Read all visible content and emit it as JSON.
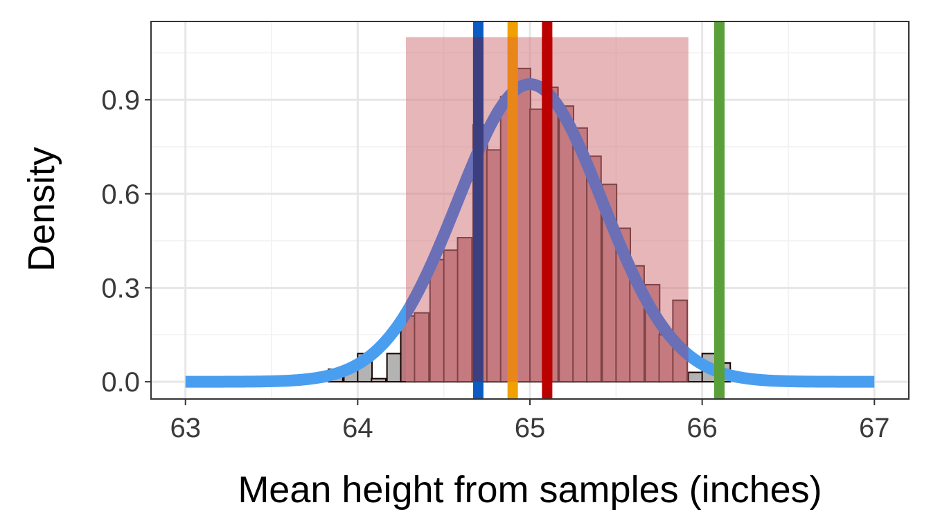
{
  "chart_data": {
    "type": "bar",
    "title": "",
    "xlabel": "Mean height from samples (inches)",
    "ylabel": "Density",
    "xlim": [
      62.8,
      67.2
    ],
    "ylim": [
      -0.055,
      1.15
    ],
    "x_ticks": [
      63,
      64,
      65,
      66,
      67
    ],
    "x_tick_labels": [
      "63",
      "64",
      "65",
      "66",
      "67"
    ],
    "y_ticks": [
      0.0,
      0.3,
      0.6,
      0.9
    ],
    "y_tick_labels": [
      "0.0",
      "0.3",
      "0.6",
      "0.9"
    ],
    "grid": true,
    "histogram": {
      "bin_width": 0.0833,
      "bins": [
        {
          "x0": 63.83,
          "value": 0.04
        },
        {
          "x0": 63.92,
          "value": 0.05
        },
        {
          "x0": 64.0,
          "value": 0.09
        },
        {
          "x0": 64.08,
          "value": 0.01
        },
        {
          "x0": 64.17,
          "value": 0.09
        },
        {
          "x0": 64.25,
          "value": 0.21
        },
        {
          "x0": 64.33,
          "value": 0.22
        },
        {
          "x0": 64.42,
          "value": 0.39
        },
        {
          "x0": 64.5,
          "value": 0.42
        },
        {
          "x0": 64.58,
          "value": 0.46
        },
        {
          "x0": 64.67,
          "value": 0.82
        },
        {
          "x0": 64.75,
          "value": 0.74
        },
        {
          "x0": 64.83,
          "value": 0.91
        },
        {
          "x0": 64.92,
          "value": 1.0
        },
        {
          "x0": 65.0,
          "value": 0.87
        },
        {
          "x0": 65.08,
          "value": 0.94
        },
        {
          "x0": 65.17,
          "value": 0.88
        },
        {
          "x0": 65.25,
          "value": 0.81
        },
        {
          "x0": 65.33,
          "value": 0.72
        },
        {
          "x0": 65.42,
          "value": 0.63
        },
        {
          "x0": 65.5,
          "value": 0.49
        },
        {
          "x0": 65.58,
          "value": 0.37
        },
        {
          "x0": 65.67,
          "value": 0.31
        },
        {
          "x0": 65.75,
          "value": 0.15
        },
        {
          "x0": 65.83,
          "value": 0.26
        },
        {
          "x0": 65.92,
          "value": 0.03
        },
        {
          "x0": 66.0,
          "value": 0.09
        },
        {
          "x0": 66.08,
          "value": 0.06
        }
      ],
      "highlight_range": [
        64.28,
        65.92
      ],
      "highlight_fill": "#b47a7f",
      "outside_fill": "#b3b3b3",
      "bar_stroke": "#1a0000"
    },
    "shaded_interval": {
      "x": [
        64.28,
        65.92
      ],
      "y_top": 1.1,
      "color": "#d47a80",
      "opacity": 0.55
    },
    "density_curve": {
      "mean": 65.0,
      "sd": 0.42,
      "x_range": [
        63.0,
        67.0
      ],
      "color_inside": "#6b6fb5",
      "color_outside": "#4a9ef0"
    },
    "vertical_lines": [
      {
        "x": 64.7,
        "color": "#0a5cc2",
        "overlap_color": "#3b3f7f"
      },
      {
        "x": 64.9,
        "color": "#f0a000",
        "overlap_color": "#e8861a"
      },
      {
        "x": 65.1,
        "color": "#bb0000",
        "overlap_color": "#bb0000"
      },
      {
        "x": 66.1,
        "color": "#5aa03a",
        "overlap_color": "#5aa03a"
      }
    ]
  }
}
